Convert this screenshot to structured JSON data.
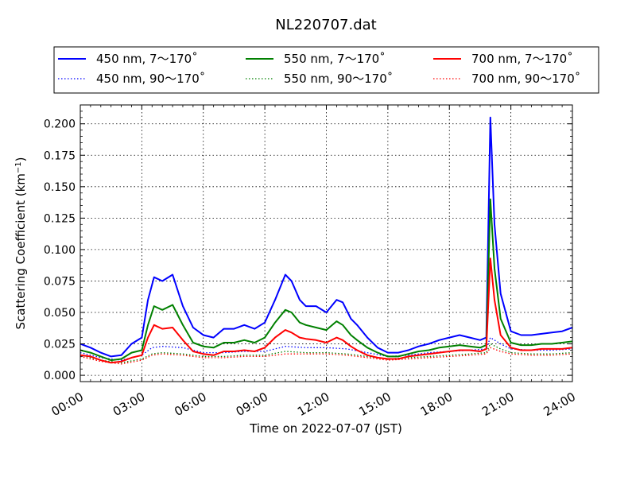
{
  "chart_data": {
    "type": "line",
    "title": "NL220707.dat",
    "xlabel": "Time on 2022-07-07 (JST)",
    "ylabel_main": "Scattering Coefficient (km",
    "ylabel_exp": "−1",
    "ylabel_close": ")",
    "x_unit": "hours",
    "xlim": [
      0,
      24
    ],
    "ylim": [
      -0.005,
      0.215
    ],
    "xticks": [
      0,
      3,
      6,
      9,
      12,
      15,
      18,
      21,
      24
    ],
    "xtick_labels": [
      "00:00",
      "03:00",
      "06:00",
      "09:00",
      "12:00",
      "15:00",
      "18:00",
      "21:00",
      "24:00"
    ],
    "yticks": [
      0.0,
      0.025,
      0.05,
      0.075,
      0.1,
      0.125,
      0.15,
      0.175,
      0.2
    ],
    "ytick_labels": [
      "0.000",
      "0.025",
      "0.050",
      "0.075",
      "0.100",
      "0.125",
      "0.150",
      "0.175",
      "0.200"
    ],
    "grid": true,
    "legend_position": "top",
    "series": [
      {
        "name": "450 nm, 7～170˚",
        "color": "#0000ff",
        "style": "solid",
        "x": [
          0,
          0.5,
          1,
          1.5,
          2,
          2.5,
          3,
          3.3,
          3.6,
          4,
          4.5,
          5,
          5.5,
          6,
          6.5,
          7,
          7.5,
          8,
          8.5,
          9,
          9.5,
          10,
          10.3,
          10.7,
          11,
          11.5,
          12,
          12.5,
          12.8,
          13.2,
          13.5,
          14,
          14.5,
          15,
          15.5,
          16,
          16.5,
          17,
          17.5,
          18,
          18.5,
          19,
          19.5,
          19.8,
          20.0,
          20.2,
          20.5,
          21,
          21.5,
          22,
          22.5,
          23,
          23.5,
          24
        ],
        "y": [
          0.025,
          0.022,
          0.018,
          0.015,
          0.016,
          0.025,
          0.03,
          0.06,
          0.078,
          0.075,
          0.08,
          0.055,
          0.038,
          0.032,
          0.03,
          0.037,
          0.037,
          0.04,
          0.037,
          0.042,
          0.06,
          0.08,
          0.075,
          0.06,
          0.055,
          0.055,
          0.05,
          0.06,
          0.058,
          0.045,
          0.04,
          0.03,
          0.022,
          0.018,
          0.018,
          0.02,
          0.023,
          0.025,
          0.028,
          0.03,
          0.032,
          0.03,
          0.028,
          0.03,
          0.205,
          0.12,
          0.065,
          0.035,
          0.032,
          0.032,
          0.033,
          0.034,
          0.035,
          0.038
        ]
      },
      {
        "name": "550 nm, 7～170˚",
        "color": "#008000",
        "style": "solid",
        "x": [
          0,
          0.5,
          1,
          1.5,
          2,
          2.5,
          3,
          3.3,
          3.6,
          4,
          4.5,
          5,
          5.5,
          6,
          6.5,
          7,
          7.5,
          8,
          8.5,
          9,
          9.5,
          10,
          10.3,
          10.7,
          11,
          11.5,
          12,
          12.5,
          12.8,
          13.2,
          13.5,
          14,
          14.5,
          15,
          15.5,
          16,
          16.5,
          17,
          17.5,
          18,
          18.5,
          19,
          19.5,
          19.8,
          20.0,
          20.2,
          20.5,
          21,
          21.5,
          22,
          22.5,
          23,
          23.5,
          24
        ],
        "y": [
          0.02,
          0.018,
          0.015,
          0.012,
          0.013,
          0.018,
          0.02,
          0.04,
          0.055,
          0.052,
          0.056,
          0.04,
          0.026,
          0.023,
          0.022,
          0.026,
          0.026,
          0.028,
          0.026,
          0.03,
          0.042,
          0.052,
          0.05,
          0.042,
          0.04,
          0.038,
          0.036,
          0.043,
          0.04,
          0.032,
          0.028,
          0.022,
          0.018,
          0.015,
          0.015,
          0.017,
          0.019,
          0.02,
          0.022,
          0.023,
          0.024,
          0.023,
          0.022,
          0.024,
          0.14,
          0.085,
          0.045,
          0.026,
          0.024,
          0.024,
          0.025,
          0.025,
          0.026,
          0.027
        ]
      },
      {
        "name": "700 nm, 7～170˚",
        "color": "#ff0000",
        "style": "solid",
        "x": [
          0,
          0.5,
          1,
          1.5,
          2,
          2.5,
          3,
          3.3,
          3.6,
          4,
          4.5,
          5,
          5.5,
          6,
          6.5,
          7,
          7.5,
          8,
          8.5,
          9,
          9.5,
          10,
          10.3,
          10.7,
          11,
          11.5,
          12,
          12.5,
          12.8,
          13.2,
          13.5,
          14,
          14.5,
          15,
          15.5,
          16,
          16.5,
          17,
          17.5,
          18,
          18.5,
          19,
          19.5,
          19.8,
          20.0,
          20.2,
          20.5,
          21,
          21.5,
          22,
          22.5,
          23,
          23.5,
          24
        ],
        "y": [
          0.016,
          0.015,
          0.012,
          0.01,
          0.011,
          0.014,
          0.016,
          0.03,
          0.04,
          0.037,
          0.038,
          0.028,
          0.019,
          0.017,
          0.016,
          0.019,
          0.019,
          0.02,
          0.019,
          0.022,
          0.03,
          0.036,
          0.034,
          0.03,
          0.029,
          0.028,
          0.026,
          0.03,
          0.028,
          0.023,
          0.02,
          0.016,
          0.014,
          0.013,
          0.013,
          0.015,
          0.016,
          0.017,
          0.018,
          0.019,
          0.02,
          0.02,
          0.019,
          0.021,
          0.093,
          0.06,
          0.032,
          0.022,
          0.02,
          0.02,
          0.021,
          0.021,
          0.021,
          0.022
        ]
      },
      {
        "name": "450 nm, 90～170˚",
        "color": "#0000ff",
        "style": "dotted",
        "x": [
          0,
          1,
          2,
          3,
          3.5,
          4,
          5,
          6,
          7,
          8,
          9,
          10,
          11,
          12,
          13,
          14,
          15,
          16,
          17,
          18,
          19,
          19.8,
          20.0,
          20.5,
          21,
          22,
          23,
          24
        ],
        "y": [
          0.018,
          0.014,
          0.012,
          0.016,
          0.022,
          0.023,
          0.022,
          0.018,
          0.018,
          0.019,
          0.019,
          0.023,
          0.022,
          0.022,
          0.021,
          0.018,
          0.015,
          0.016,
          0.018,
          0.019,
          0.02,
          0.021,
          0.03,
          0.025,
          0.021,
          0.02,
          0.02,
          0.021
        ]
      },
      {
        "name": "550 nm, 90～170˚",
        "color": "#008000",
        "style": "dotted",
        "x": [
          0,
          1,
          2,
          3,
          3.5,
          4,
          5,
          6,
          7,
          8,
          9,
          10,
          11,
          12,
          13,
          14,
          15,
          16,
          17,
          18,
          19,
          19.8,
          20.0,
          20.5,
          21,
          22,
          23,
          24
        ],
        "y": [
          0.016,
          0.012,
          0.01,
          0.013,
          0.017,
          0.018,
          0.017,
          0.015,
          0.015,
          0.016,
          0.016,
          0.019,
          0.018,
          0.018,
          0.017,
          0.015,
          0.013,
          0.014,
          0.015,
          0.016,
          0.017,
          0.018,
          0.025,
          0.021,
          0.018,
          0.017,
          0.017,
          0.018
        ]
      },
      {
        "name": "700 nm, 90～170˚",
        "color": "#ff0000",
        "style": "dotted",
        "x": [
          0,
          1,
          2,
          3,
          3.5,
          4,
          5,
          6,
          7,
          8,
          9,
          10,
          11,
          12,
          13,
          14,
          15,
          16,
          17,
          18,
          19,
          19.8,
          20.0,
          20.5,
          21,
          22,
          23,
          24
        ],
        "y": [
          0.015,
          0.011,
          0.009,
          0.012,
          0.016,
          0.017,
          0.016,
          0.014,
          0.014,
          0.015,
          0.015,
          0.017,
          0.017,
          0.017,
          0.016,
          0.014,
          0.012,
          0.013,
          0.014,
          0.015,
          0.016,
          0.017,
          0.022,
          0.019,
          0.017,
          0.016,
          0.016,
          0.017
        ]
      }
    ]
  }
}
